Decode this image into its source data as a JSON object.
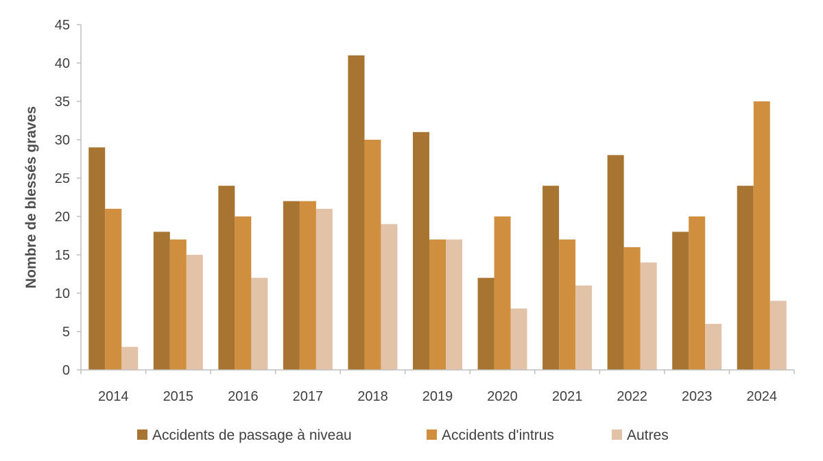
{
  "chart_data": {
    "type": "bar",
    "title": "",
    "xlabel": "",
    "ylabel": "Nombre de blessés graves",
    "ylim": [
      0,
      45
    ],
    "yticks": [
      0,
      5,
      10,
      15,
      20,
      25,
      30,
      35,
      40,
      45
    ],
    "grid": false,
    "legend_position": "bottom",
    "categories": [
      "2014",
      "2015",
      "2016",
      "2017",
      "2018",
      "2019",
      "2020",
      "2021",
      "2022",
      "2023",
      "2024"
    ],
    "series": [
      {
        "name": "Accidents de passage à niveau",
        "color": "#a87431",
        "values": [
          29,
          18,
          24,
          22,
          41,
          31,
          12,
          24,
          28,
          18,
          24
        ]
      },
      {
        "name": "Accidents d'intrus",
        "color": "#d08f3f",
        "values": [
          21,
          17,
          20,
          22,
          30,
          17,
          20,
          17,
          16,
          20,
          35
        ]
      },
      {
        "name": "Autres",
        "color": "#e3c3a8",
        "values": [
          3,
          15,
          12,
          21,
          19,
          17,
          8,
          11,
          14,
          6,
          9
        ]
      }
    ]
  }
}
